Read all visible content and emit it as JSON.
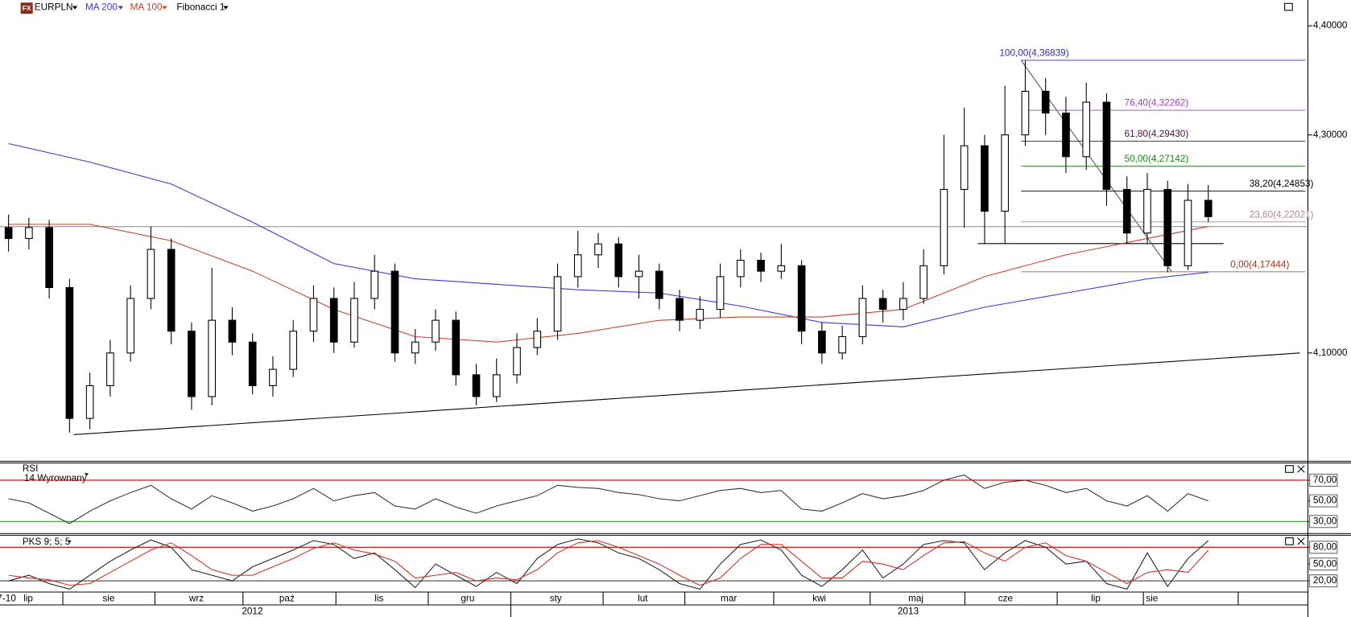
{
  "header": {
    "icon": "FX"
  },
  "time_axis": {
    "xlim": [
      -0.42,
      63.9
    ],
    "xticks": [
      {
        "value": -0.1,
        "label": "7-10"
      },
      {
        "value": 0.97,
        "label": "lip"
      },
      {
        "value": 4.92,
        "label": "sie"
      },
      {
        "value": 9.24,
        "label": "wrz"
      },
      {
        "value": 13.69,
        "label": "paź"
      },
      {
        "value": 18.22,
        "label": "lis"
      },
      {
        "value": 22.58,
        "label": "gru"
      },
      {
        "value": 26.91,
        "label": "sty"
      },
      {
        "value": 31.19,
        "label": "lut"
      },
      {
        "value": 35.42,
        "label": "mar"
      },
      {
        "value": 39.87,
        "label": "kwi"
      },
      {
        "value": 44.62,
        "label": "maj"
      },
      {
        "value": 49.03,
        "label": "cze"
      },
      {
        "value": 53.47,
        "label": "lip"
      },
      {
        "value": 56.23,
        "label": "sie"
      }
    ],
    "separators": [
      2.67,
      7.2,
      11.53,
      16.1,
      20.64,
      24.7,
      29.24,
      33.26,
      37.63,
      42.37,
      47.03,
      51.57,
      55.81,
      60.47
    ],
    "years": [
      {
        "value": 11.99,
        "label": "2012"
      },
      {
        "value": 44.24,
        "label": "2013"
      }
    ],
    "year_separator": 24.7
  },
  "chart_data": [
    {
      "type": "candlestick",
      "title": "EURPLN",
      "ylim": [
        4.0015,
        4.4237
      ],
      "yticks": [
        {
          "value": 4.4,
          "label": "4,40000"
        },
        {
          "value": 4.3,
          "label": "4,30000"
        },
        {
          "value": 4.1,
          "label": "4,10000"
        }
      ],
      "candles": {
        "open": [
          4.215,
          4.205,
          4.215,
          4.16,
          4.04,
          4.07,
          4.1,
          4.15,
          4.195,
          4.12,
          4.06,
          4.13,
          4.11,
          4.07,
          4.085,
          4.12,
          4.15,
          4.11,
          4.15,
          4.175,
          4.1,
          4.11,
          4.13,
          4.08,
          4.06,
          4.08,
          4.105,
          4.12,
          4.17,
          4.19,
          4.2,
          4.17,
          4.175,
          4.15,
          4.13,
          4.14,
          4.17,
          4.185,
          4.175,
          4.18,
          4.12,
          4.1,
          4.115,
          4.15,
          4.14,
          4.15,
          4.18,
          4.25,
          4.29,
          4.23,
          4.3,
          4.34,
          4.32,
          4.28,
          4.33,
          4.25,
          4.21,
          4.25,
          4.18,
          4.24
        ],
        "high": [
          4.227,
          4.224,
          4.222,
          4.168,
          4.082,
          4.112,
          4.162,
          4.216,
          4.205,
          4.128,
          4.178,
          4.142,
          4.118,
          4.097,
          4.13,
          4.162,
          4.16,
          4.165,
          4.19,
          4.182,
          4.122,
          4.14,
          4.138,
          4.09,
          4.095,
          4.118,
          4.132,
          4.182,
          4.212,
          4.21,
          4.206,
          4.19,
          4.182,
          4.158,
          4.152,
          4.182,
          4.195,
          4.192,
          4.2,
          4.185,
          4.128,
          4.125,
          4.162,
          4.158,
          4.165,
          4.195,
          4.3,
          4.325,
          4.3,
          4.345,
          4.368,
          4.352,
          4.335,
          4.348,
          4.338,
          4.262,
          4.265,
          4.258,
          4.255,
          4.254
        ],
        "low": [
          4.193,
          4.195,
          4.15,
          4.027,
          4.03,
          4.06,
          4.092,
          4.14,
          4.108,
          4.048,
          4.052,
          4.098,
          4.062,
          4.06,
          4.078,
          4.11,
          4.1,
          4.105,
          4.14,
          4.092,
          4.09,
          4.102,
          4.07,
          4.052,
          4.055,
          4.072,
          4.098,
          4.112,
          4.16,
          4.178,
          4.16,
          4.15,
          4.14,
          4.12,
          4.122,
          4.132,
          4.16,
          4.165,
          4.168,
          4.108,
          4.09,
          4.094,
          4.108,
          4.128,
          4.13,
          4.145,
          4.172,
          4.215,
          4.2,
          4.2,
          4.29,
          4.3,
          4.265,
          4.268,
          4.235,
          4.2,
          4.2,
          4.174,
          4.176,
          4.22
        ],
        "close": [
          4.205,
          4.215,
          4.16,
          4.04,
          4.07,
          4.1,
          4.15,
          4.195,
          4.12,
          4.06,
          4.13,
          4.11,
          4.07,
          4.085,
          4.12,
          4.15,
          4.11,
          4.15,
          4.175,
          4.1,
          4.11,
          4.13,
          4.08,
          4.06,
          4.08,
          4.105,
          4.12,
          4.17,
          4.19,
          4.2,
          4.17,
          4.175,
          4.15,
          4.13,
          4.14,
          4.17,
          4.185,
          4.175,
          4.18,
          4.12,
          4.1,
          4.115,
          4.15,
          4.14,
          4.15,
          4.18,
          4.25,
          4.29,
          4.23,
          4.3,
          4.34,
          4.32,
          4.28,
          4.33,
          4.25,
          4.21,
          4.25,
          4.18,
          4.24,
          4.225
        ]
      },
      "series": [
        {
          "name": "MA 200",
          "color": "#3a3ad0",
          "x": [
            0,
            4,
            8,
            12,
            16,
            20,
            24,
            28,
            32,
            36,
            40,
            44,
            48,
            52,
            56,
            59
          ],
          "values": [
            4.292,
            4.275,
            4.255,
            4.22,
            4.182,
            4.168,
            4.163,
            4.158,
            4.155,
            4.143,
            4.128,
            4.124,
            4.142,
            4.155,
            4.168,
            4.174
          ]
        },
        {
          "name": "MA 100",
          "color": "#c8402a",
          "x": [
            0,
            4,
            8,
            12,
            16,
            20,
            24,
            28,
            32,
            36,
            40,
            44,
            48,
            52,
            56,
            59
          ],
          "values": [
            4.218,
            4.218,
            4.203,
            4.175,
            4.14,
            4.115,
            4.11,
            4.118,
            4.13,
            4.133,
            4.133,
            4.14,
            4.17,
            4.19,
            4.205,
            4.216
          ]
        }
      ],
      "lines": [
        {
          "color": "#888888",
          "x": [
            -0.42,
            63.9
          ],
          "y": [
            4.2158,
            4.2158
          ]
        },
        {
          "color": "#000000",
          "x": [
            47.67,
            59.75
          ],
          "y": [
            4.2003,
            4.2003
          ]
        },
        {
          "color": "#000000",
          "x": [
            3.2,
            63.5
          ],
          "y": [
            4.0251,
            4.1
          ]
        },
        {
          "color": "#555555",
          "x": [
            49.8,
            57.2
          ],
          "y": [
            4.3684,
            4.1744
          ]
        }
      ],
      "fibonacci": {
        "name": "Fibonacci 1",
        "x_start": 49.8,
        "levels": [
          {
            "label": "100,00(4,36839)",
            "value": 4.36839,
            "color": "#2c2cc0"
          },
          {
            "label": "76,40(4,32262)",
            "value": 4.32262,
            "color": "#a040c0"
          },
          {
            "label": "61,80(4,29430)",
            "value": 4.2943,
            "color": "#501050"
          },
          {
            "label": "50,00(4,27142)",
            "value": 4.27142,
            "color": "#1a8a1a"
          },
          {
            "label": "38,20(4,24853)",
            "value": 4.24853,
            "color": "#000000"
          },
          {
            "label": "23,60(4,22021)",
            "value": 4.22021,
            "color": "#b08a8a"
          },
          {
            "label": "0,00(4,17444)",
            "value": 4.17444,
            "color": "#b03018"
          }
        ]
      }
    },
    {
      "type": "line",
      "title": "RSI",
      "subtitle": "14 Wyrownany",
      "ylim": [
        20,
        86.7
      ],
      "yticks": [
        {
          "value": 70,
          "label": "70,00"
        },
        {
          "value": 50,
          "label": "50,00"
        },
        {
          "value": 30,
          "label": "30,00"
        }
      ],
      "levels": [
        {
          "value": 70,
          "color": "#c00000"
        },
        {
          "value": 30,
          "color": "#109010"
        }
      ],
      "series": [
        {
          "color": "#333333",
          "values": [
            52,
            48,
            38,
            28,
            40,
            50,
            58,
            65,
            52,
            42,
            55,
            48,
            40,
            45,
            52,
            62,
            50,
            55,
            58,
            45,
            42,
            52,
            44,
            38,
            45,
            50,
            55,
            65,
            63,
            62,
            58,
            56,
            52,
            50,
            55,
            60,
            62,
            58,
            60,
            42,
            40,
            48,
            57,
            52,
            55,
            60,
            70,
            75,
            62,
            68,
            70,
            65,
            58,
            62,
            50,
            45,
            55,
            40,
            57,
            50
          ]
        }
      ]
    },
    {
      "type": "line",
      "title": "PKS 9; 5; 5",
      "ylim": [
        0,
        101.5
      ],
      "yticks": [
        {
          "value": 80,
          "label": "80,00"
        },
        {
          "value": 50,
          "label": "50,00"
        },
        {
          "value": 20,
          "label": "20,00"
        }
      ],
      "levels": [
        {
          "value": 80,
          "color": "#c00000"
        },
        {
          "value": 20,
          "color": "#444444"
        }
      ],
      "series": [
        {
          "color": "#222222",
          "values": [
            20,
            30,
            15,
            5,
            30,
            55,
            75,
            93,
            80,
            40,
            30,
            20,
            45,
            60,
            75,
            92,
            85,
            60,
            70,
            40,
            8,
            50,
            30,
            10,
            35,
            15,
            60,
            85,
            95,
            88,
            70,
            60,
            40,
            15,
            5,
            50,
            85,
            93,
            75,
            30,
            10,
            40,
            75,
            25,
            50,
            85,
            92,
            88,
            40,
            70,
            92,
            80,
            50,
            55,
            15,
            5,
            70,
            10,
            60,
            92
          ]
        },
        {
          "color": "#d03020",
          "values": [
            30,
            25,
            22,
            12,
            15,
            35,
            55,
            75,
            88,
            65,
            40,
            30,
            30,
            45,
            60,
            78,
            88,
            75,
            68,
            55,
            25,
            30,
            35,
            20,
            25,
            22,
            40,
            70,
            88,
            92,
            80,
            65,
            50,
            30,
            12,
            25,
            60,
            85,
            85,
            55,
            25,
            25,
            55,
            50,
            40,
            65,
            88,
            90,
            70,
            55,
            80,
            88,
            65,
            55,
            35,
            15,
            35,
            40,
            35,
            75
          ]
        }
      ]
    }
  ]
}
